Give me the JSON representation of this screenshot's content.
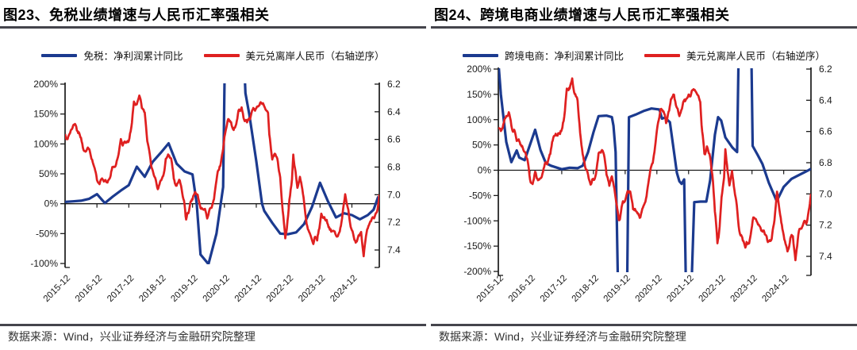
{
  "colors": {
    "line_blue": "#1b3a8f",
    "line_red": "#df2020",
    "rule_dark": "#44444c",
    "axis_text": "#1a1a1a"
  },
  "panels": [
    {
      "title": "图23、免税业绩增速与人民币汇率强相关",
      "legend_blue": "免税：净利润累计同比",
      "legend_red": "美元兑离岸人民币（右轴逆序）",
      "footer": "数据来源：Wind，兴业证券经济与金融研究院整理"
    },
    {
      "title": "图24、跨境电商业绩增速与人民币汇率强相关",
      "legend_blue": "跨境电商：净利润累计同比",
      "legend_red": "美元兑离岸人民币（右轴逆序）",
      "footer": "数据来源：Wind，兴业证券经济与金融研究院整理"
    }
  ],
  "chart_data": [
    {
      "type": "line",
      "title": "图23、免税业绩增速与人民币汇率强相关",
      "x_tick_labels": [
        "2015-12",
        "2016-12",
        "2017-12",
        "2018-12",
        "2019-12",
        "2020-12",
        "2021-12",
        "2022-12",
        "2023-12",
        "2024-12"
      ],
      "left_axis": {
        "min": -100,
        "max": 200,
        "step": 50,
        "unit": "%",
        "tick_labels": [
          "200%",
          "150%",
          "100%",
          "50%",
          "0%",
          "-50%",
          "-100%"
        ]
      },
      "right_axis": {
        "min": 6.2,
        "max": 7.4,
        "step": 0.2,
        "reversed": true,
        "tick_labels": [
          "6.2",
          "6.4",
          "6.6",
          "6.8",
          "7.0",
          "7.2",
          "7.4"
        ]
      },
      "series": [
        {
          "name": "免税：净利润累计同比",
          "axis": "left",
          "color": "#1b3a8f",
          "style": "smooth",
          "points": [
            [
              2015.92,
              3
            ],
            [
              2016.17,
              4
            ],
            [
              2016.42,
              5
            ],
            [
              2016.67,
              8
            ],
            [
              2016.92,
              16
            ],
            [
              2017.17,
              1
            ],
            [
              2017.42,
              12
            ],
            [
              2017.67,
              22
            ],
            [
              2017.92,
              31
            ],
            [
              2018.17,
              62
            ],
            [
              2018.42,
              45
            ],
            [
              2018.67,
              70
            ],
            [
              2018.92,
              85
            ],
            [
              2019.17,
              101
            ],
            [
              2019.42,
              67
            ],
            [
              2019.67,
              54
            ],
            [
              2019.92,
              49
            ],
            [
              2020.05,
              0
            ],
            [
              2020.17,
              -85
            ],
            [
              2020.42,
              -101
            ],
            [
              2020.67,
              -50
            ],
            [
              2020.88,
              28
            ],
            [
              2020.96,
              350
            ],
            [
              2021.45,
              350
            ],
            [
              2021.58,
              185
            ],
            [
              2021.7,
              150
            ],
            [
              2021.92,
              71
            ],
            [
              2022.1,
              0
            ],
            [
              2022.17,
              -12
            ],
            [
              2022.42,
              -32
            ],
            [
              2022.67,
              -50
            ],
            [
              2022.92,
              -51
            ],
            [
              2023.17,
              -48
            ],
            [
              2023.42,
              -34
            ],
            [
              2023.67,
              -5
            ],
            [
              2023.92,
              35
            ],
            [
              2024.17,
              4
            ],
            [
              2024.42,
              -23
            ],
            [
              2024.67,
              -16
            ],
            [
              2024.92,
              -19
            ],
            [
              2025.17,
              -26
            ],
            [
              2025.42,
              -19
            ],
            [
              2025.6,
              -10
            ],
            [
              2025.75,
              12
            ]
          ]
        },
        {
          "name": "美元兑离岸人民币（右轴逆序）",
          "axis": "right",
          "color": "#df2020",
          "style": "noisy",
          "points_ref": "usdcnh_points"
        }
      ]
    },
    {
      "type": "line",
      "title": "图24、跨境电商业绩增速与人民币汇率强相关",
      "x_tick_labels": [
        "2015-12",
        "2016-12",
        "2017-12",
        "2018-12",
        "2019-12",
        "2020-12",
        "2021-12",
        "2022-12",
        "2023-12",
        "2024-12"
      ],
      "left_axis": {
        "min": -200,
        "max": 200,
        "step": 50,
        "unit": "%",
        "tick_labels": [
          "200%",
          "150%",
          "100%",
          "50%",
          "0%",
          "-50%",
          "-100%",
          "-150%",
          "-200%"
        ]
      },
      "right_axis": {
        "min": 6.2,
        "max": 7.4,
        "step": 0.2,
        "reversed": true,
        "tick_labels": [
          "6.2",
          "6.4",
          "6.6",
          "6.8",
          "7.0",
          "7.2",
          "7.4"
        ]
      },
      "series": [
        {
          "name": "跨境电商：净利润累计同比",
          "axis": "left",
          "color": "#1b3a8f",
          "style": "smooth",
          "points": [
            [
              2015.92,
              215
            ],
            [
              2016.0,
              150
            ],
            [
              2016.17,
              56
            ],
            [
              2016.33,
              16
            ],
            [
              2016.5,
              39
            ],
            [
              2016.58,
              25
            ],
            [
              2016.75,
              20
            ],
            [
              2017.08,
              80
            ],
            [
              2017.25,
              40
            ],
            [
              2017.42,
              14
            ],
            [
              2017.58,
              9
            ],
            [
              2017.92,
              2
            ],
            [
              2018.17,
              5
            ],
            [
              2018.42,
              4
            ],
            [
              2018.58,
              9
            ],
            [
              2018.75,
              36
            ],
            [
              2018.92,
              75
            ],
            [
              2019.08,
              107
            ],
            [
              2019.33,
              108
            ],
            [
              2019.5,
              105
            ],
            [
              2019.55,
              88
            ],
            [
              2019.62,
              36
            ],
            [
              2019.7,
              -250
            ],
            [
              2019.98,
              -250
            ],
            [
              2020.04,
              105
            ],
            [
              2020.25,
              110
            ],
            [
              2020.5,
              117
            ],
            [
              2020.75,
              122
            ],
            [
              2021.0,
              120
            ],
            [
              2021.08,
              102
            ],
            [
              2021.17,
              104
            ],
            [
              2021.33,
              95
            ],
            [
              2021.55,
              -5
            ],
            [
              2021.63,
              -22
            ],
            [
              2021.7,
              -27
            ],
            [
              2021.78,
              -18
            ],
            [
              2021.84,
              -250
            ],
            [
              2022.0,
              -250
            ],
            [
              2022.1,
              -63
            ],
            [
              2022.3,
              -62
            ],
            [
              2022.48,
              -62
            ],
            [
              2022.6,
              -20
            ],
            [
              2022.75,
              70
            ],
            [
              2022.85,
              105
            ],
            [
              2022.95,
              98
            ],
            [
              2023.08,
              65
            ],
            [
              2023.3,
              45
            ],
            [
              2023.45,
              36
            ],
            [
              2023.52,
              320
            ],
            [
              2023.88,
              320
            ],
            [
              2023.94,
              48
            ],
            [
              2024.1,
              30
            ],
            [
              2024.25,
              12
            ],
            [
              2024.45,
              -25
            ],
            [
              2024.7,
              -61
            ],
            [
              2024.92,
              -33
            ],
            [
              2025.17,
              -17
            ],
            [
              2025.45,
              -8
            ],
            [
              2025.7,
              0
            ],
            [
              2025.78,
              3
            ]
          ]
        },
        {
          "name": "美元兑离岸人民币（右轴逆序）",
          "axis": "right",
          "color": "#df2020",
          "style": "noisy",
          "points_ref": "usdcnh_points"
        }
      ]
    }
  ],
  "usdcnh_points": [
    [
      2015.92,
      6.57
    ],
    [
      2016.0,
      6.6
    ],
    [
      2016.06,
      6.56
    ],
    [
      2016.17,
      6.51
    ],
    [
      2016.25,
      6.49
    ],
    [
      2016.33,
      6.56
    ],
    [
      2016.42,
      6.59
    ],
    [
      2016.5,
      6.67
    ],
    [
      2016.58,
      6.67
    ],
    [
      2016.67,
      6.68
    ],
    [
      2016.75,
      6.74
    ],
    [
      2016.83,
      6.78
    ],
    [
      2016.92,
      6.9
    ],
    [
      2017.0,
      6.93
    ],
    [
      2017.08,
      6.87
    ],
    [
      2017.17,
      6.9
    ],
    [
      2017.25,
      6.89
    ],
    [
      2017.33,
      6.86
    ],
    [
      2017.42,
      6.8
    ],
    [
      2017.5,
      6.78
    ],
    [
      2017.58,
      6.72
    ],
    [
      2017.67,
      6.62
    ],
    [
      2017.75,
      6.63
    ],
    [
      2017.83,
      6.61
    ],
    [
      2017.92,
      6.6
    ],
    [
      2018.0,
      6.51
    ],
    [
      2018.08,
      6.34
    ],
    [
      2018.17,
      6.33
    ],
    [
      2018.25,
      6.27
    ],
    [
      2018.33,
      6.36
    ],
    [
      2018.42,
      6.41
    ],
    [
      2018.5,
      6.62
    ],
    [
      2018.58,
      6.73
    ],
    [
      2018.67,
      6.84
    ],
    [
      2018.75,
      6.88
    ],
    [
      2018.83,
      6.95
    ],
    [
      2018.92,
      6.9
    ],
    [
      2019.0,
      6.87
    ],
    [
      2019.08,
      6.74
    ],
    [
      2019.17,
      6.71
    ],
    [
      2019.25,
      6.73
    ],
    [
      2019.33,
      6.88
    ],
    [
      2019.42,
      6.93
    ],
    [
      2019.5,
      6.88
    ],
    [
      2019.58,
      6.96
    ],
    [
      2019.67,
      7.08
    ],
    [
      2019.72,
      7.17
    ],
    [
      2019.79,
      7.13
    ],
    [
      2019.85,
      7.04
    ],
    [
      2019.92,
      7.03
    ],
    [
      2020.0,
      6.97
    ],
    [
      2020.08,
      7.0
    ],
    [
      2020.17,
      7.1
    ],
    [
      2020.25,
      7.09
    ],
    [
      2020.33,
      7.13
    ],
    [
      2020.38,
      7.16
    ],
    [
      2020.46,
      7.1
    ],
    [
      2020.54,
      7.07
    ],
    [
      2020.63,
      6.97
    ],
    [
      2020.71,
      6.84
    ],
    [
      2020.79,
      6.79
    ],
    [
      2020.88,
      6.67
    ],
    [
      2020.96,
      6.53
    ],
    [
      2021.04,
      6.46
    ],
    [
      2021.13,
      6.48
    ],
    [
      2021.21,
      6.54
    ],
    [
      2021.29,
      6.48
    ],
    [
      2021.38,
      6.39
    ],
    [
      2021.46,
      6.38
    ],
    [
      2021.54,
      6.46
    ],
    [
      2021.63,
      6.48
    ],
    [
      2021.71,
      6.45
    ],
    [
      2021.79,
      6.39
    ],
    [
      2021.88,
      6.38
    ],
    [
      2021.96,
      6.37
    ],
    [
      2022.04,
      6.35
    ],
    [
      2022.13,
      6.32
    ],
    [
      2022.21,
      6.37
    ],
    [
      2022.29,
      6.41
    ],
    [
      2022.33,
      6.57
    ],
    [
      2022.42,
      6.74
    ],
    [
      2022.5,
      6.7
    ],
    [
      2022.58,
      6.74
    ],
    [
      2022.67,
      6.88
    ],
    [
      2022.75,
      7.11
    ],
    [
      2022.79,
      7.2
    ],
    [
      2022.83,
      7.31
    ],
    [
      2022.88,
      7.25
    ],
    [
      2022.92,
      7.15
    ],
    [
      2022.96,
      7.02
    ],
    [
      2023.04,
      6.9
    ],
    [
      2023.08,
      6.72
    ],
    [
      2023.17,
      6.88
    ],
    [
      2023.21,
      6.95
    ],
    [
      2023.29,
      6.87
    ],
    [
      2023.33,
      6.92
    ],
    [
      2023.42,
      7.05
    ],
    [
      2023.5,
      7.2
    ],
    [
      2023.54,
      7.24
    ],
    [
      2023.63,
      7.29
    ],
    [
      2023.71,
      7.34
    ],
    [
      2023.75,
      7.31
    ],
    [
      2023.83,
      7.32
    ],
    [
      2023.88,
      7.26
    ],
    [
      2023.96,
      7.15
    ],
    [
      2024.04,
      7.17
    ],
    [
      2024.13,
      7.2
    ],
    [
      2024.21,
      7.25
    ],
    [
      2024.29,
      7.25
    ],
    [
      2024.38,
      7.27
    ],
    [
      2024.46,
      7.3
    ],
    [
      2024.54,
      7.28
    ],
    [
      2024.63,
      7.15
    ],
    [
      2024.71,
      6.98
    ],
    [
      2024.79,
      7.1
    ],
    [
      2024.88,
      7.24
    ],
    [
      2024.96,
      7.3
    ],
    [
      2025.04,
      7.36
    ],
    [
      2025.13,
      7.28
    ],
    [
      2025.21,
      7.26
    ],
    [
      2025.29,
      7.43
    ],
    [
      2025.38,
      7.27
    ],
    [
      2025.46,
      7.22
    ],
    [
      2025.54,
      7.17
    ],
    [
      2025.63,
      7.18
    ],
    [
      2025.71,
      7.12
    ],
    [
      2025.78,
      7.0
    ]
  ]
}
